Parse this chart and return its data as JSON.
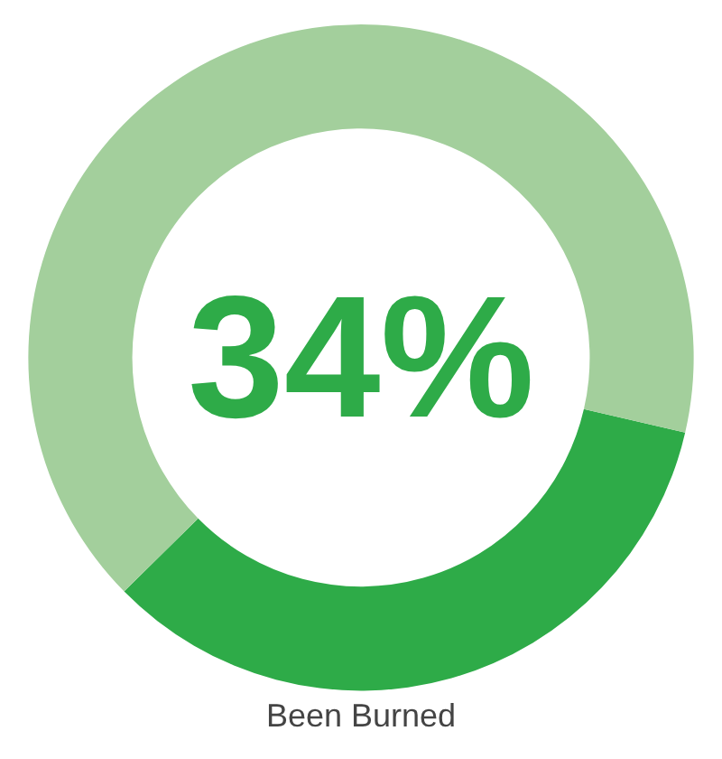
{
  "chart_data": {
    "type": "donut",
    "categories": [
      "Been Burned",
      null
    ],
    "values": [
      34,
      66
    ],
    "colors": [
      "#2eab48",
      "#a3cf9c"
    ],
    "value_labels": [
      "34%",
      null
    ],
    "legend": false
  }
}
